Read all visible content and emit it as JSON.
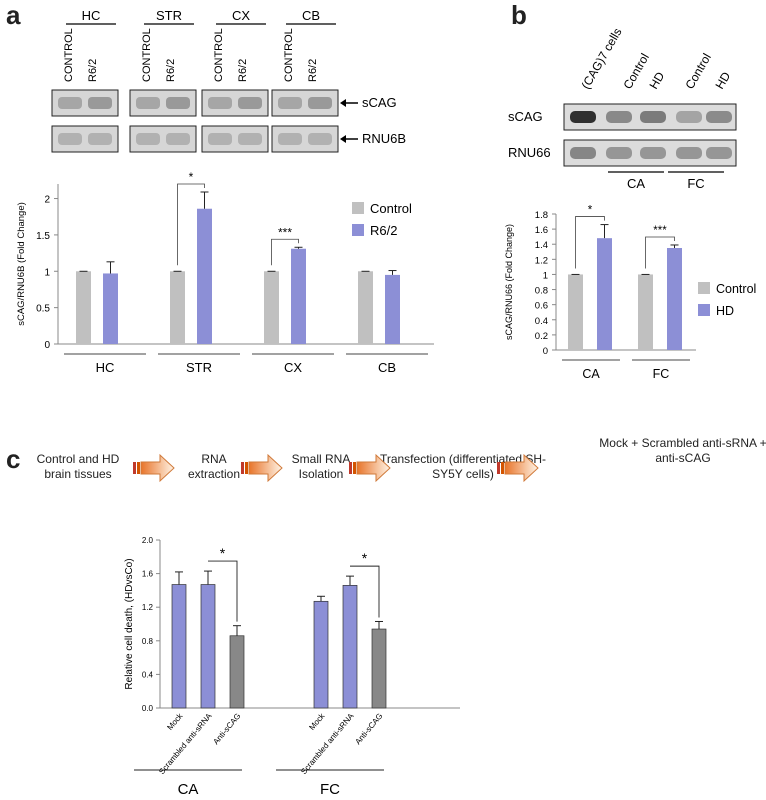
{
  "panels": {
    "a": "a",
    "b": "b",
    "c": "c"
  },
  "blot_a": {
    "groups": [
      "HC",
      "STR",
      "CX",
      "CB"
    ],
    "lanes": [
      "CONTROL",
      "R6/2"
    ],
    "bands": [
      "sCAG",
      "RNU6B"
    ]
  },
  "blot_b": {
    "lanes": [
      "(CAG)7 cells",
      "Control",
      "HD",
      "Control",
      "HD"
    ],
    "rows": [
      "sCAG",
      "RNU66"
    ],
    "groups": [
      "CA",
      "FC"
    ]
  },
  "flow": {
    "steps": [
      "Control and HD brain tissues",
      "RNA extraction",
      "Small RNA Isolation",
      "Transfection (differentiated SH-SY5Y cells)",
      "Mock + Scrambled anti-sRNA + anti-sCAG"
    ]
  },
  "chart_data": [
    {
      "type": "bar",
      "ylabel": "sCAG/RNU6B (Fold Change)",
      "categories": [
        "HC",
        "STR",
        "CX",
        "CB"
      ],
      "ylim": [
        0,
        2.2
      ],
      "yticks": [
        0,
        0.5,
        1,
        1.5,
        2
      ],
      "series": [
        {
          "name": "Control",
          "color": "#c0c0c0",
          "values": [
            1.0,
            1.0,
            1.0,
            1.0
          ],
          "errors": [
            0.0,
            0.0,
            0.0,
            0.0
          ]
        },
        {
          "name": "R6/2",
          "color": "#8c8fd6",
          "values": [
            0.97,
            1.86,
            1.31,
            0.95
          ],
          "errors": [
            0.16,
            0.23,
            0.02,
            0.06
          ]
        }
      ],
      "significance": [
        {
          "category": "STR",
          "label": "*"
        },
        {
          "category": "CX",
          "label": "***"
        }
      ],
      "legend": "right"
    },
    {
      "type": "bar",
      "ylabel": "sCAG/RNU66 (Fold Change)",
      "categories": [
        "CA",
        "FC"
      ],
      "ylim": [
        0,
        1.8
      ],
      "yticks": [
        0,
        0.2,
        0.4,
        0.6,
        0.8,
        1,
        1.2,
        1.4,
        1.6,
        1.8
      ],
      "series": [
        {
          "name": "Control",
          "color": "#c0c0c0",
          "values": [
            1.0,
            1.0
          ],
          "errors": [
            0.0,
            0.0
          ]
        },
        {
          "name": "HD",
          "color": "#8c8fd6",
          "values": [
            1.48,
            1.35
          ],
          "errors": [
            0.18,
            0.04
          ]
        }
      ],
      "significance": [
        {
          "category": "CA",
          "label": "*"
        },
        {
          "category": "FC",
          "label": "***"
        }
      ],
      "legend": "right"
    },
    {
      "type": "bar",
      "ylabel": "Relative cell death, (HDvsCo)",
      "groups": [
        "CA",
        "FC"
      ],
      "categories": [
        "Mock",
        "Scrambled anti-sRNA",
        "Anti-sCAG"
      ],
      "ylim": [
        0,
        2.0
      ],
      "yticks": [
        "0.0",
        "0.4",
        "0.8",
        "1.2",
        "1.6",
        "2.0"
      ],
      "colors": [
        "#8c8fd6",
        "#8c8fd6",
        "#888888"
      ],
      "values": [
        [
          1.47,
          1.47,
          0.86
        ],
        [
          1.27,
          1.46,
          0.94
        ]
      ],
      "errors": [
        [
          0.15,
          0.16,
          0.12
        ],
        [
          0.06,
          0.11,
          0.09
        ]
      ],
      "significance": [
        {
          "group": "CA",
          "label": "*"
        },
        {
          "group": "FC",
          "label": "*"
        }
      ]
    }
  ]
}
